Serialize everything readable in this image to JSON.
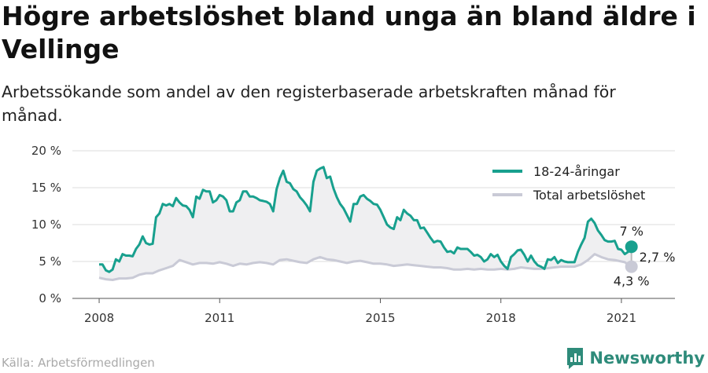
{
  "header": {
    "title": "Högre arbetslöshet bland unga än bland äldre i Vellinge",
    "subtitle": "Arbetssökande som andel av den registerbaserade arbetskraften månad för månad."
  },
  "footer": {
    "source": "Källa: Arbetsförmedlingen",
    "brand": "Newsworthy",
    "brand_icon": "newsworthy-logo-icon"
  },
  "colors": {
    "youth": "#18a08e",
    "total": "#c9cad6",
    "area": "#efeff1",
    "grid": "#dddddd",
    "brand": "#2e8b7a"
  },
  "chart_data": {
    "type": "line",
    "x_tick_labels": [
      "2008",
      "2011",
      "2015",
      "2018",
      "2021"
    ],
    "x_ticks": [
      "2008-01",
      "2011-01",
      "2015-01",
      "2018-01",
      "2021-01"
    ],
    "y_tick_labels": [
      "0 %",
      "5 %",
      "10 %",
      "15 %",
      "20 %"
    ],
    "ylim": [
      0,
      20
    ],
    "xlim": [
      "2007-05",
      "2022-05"
    ],
    "grid": true,
    "legend_position": "top-right",
    "end_labels": {
      "youth": "7 %",
      "total": "4,3 %",
      "gap": "2,7 %"
    },
    "series": [
      {
        "name": "18-24-åringar",
        "key": "youth",
        "points": [
          [
            "2008-01",
            4.6
          ],
          [
            "2008-02",
            4.6
          ],
          [
            "2008-03",
            3.8
          ],
          [
            "2008-04",
            3.6
          ],
          [
            "2008-05",
            3.9
          ],
          [
            "2008-06",
            5.3
          ],
          [
            "2008-07",
            5.0
          ],
          [
            "2008-08",
            6.0
          ],
          [
            "2008-09",
            5.8
          ],
          [
            "2008-10",
            5.8
          ],
          [
            "2008-11",
            5.7
          ],
          [
            "2008-12",
            6.7
          ],
          [
            "2009-01",
            7.3
          ],
          [
            "2009-02",
            8.4
          ],
          [
            "2009-03",
            7.5
          ],
          [
            "2009-04",
            7.3
          ],
          [
            "2009-05",
            7.4
          ],
          [
            "2009-06",
            11.0
          ],
          [
            "2009-07",
            11.5
          ],
          [
            "2009-08",
            12.8
          ],
          [
            "2009-09",
            12.6
          ],
          [
            "2009-10",
            12.8
          ],
          [
            "2009-11",
            12.5
          ],
          [
            "2009-12",
            13.6
          ],
          [
            "2010-01",
            13.0
          ],
          [
            "2010-02",
            12.6
          ],
          [
            "2010-03",
            12.5
          ],
          [
            "2010-04",
            12.0
          ],
          [
            "2010-05",
            11.0
          ],
          [
            "2010-06",
            13.8
          ],
          [
            "2010-07",
            13.5
          ],
          [
            "2010-08",
            14.7
          ],
          [
            "2010-09",
            14.5
          ],
          [
            "2010-10",
            14.5
          ],
          [
            "2010-11",
            13.0
          ],
          [
            "2010-12",
            13.3
          ],
          [
            "2011-01",
            14.0
          ],
          [
            "2011-02",
            13.8
          ],
          [
            "2011-03",
            13.3
          ],
          [
            "2011-04",
            11.8
          ],
          [
            "2011-05",
            11.8
          ],
          [
            "2011-06",
            13.0
          ],
          [
            "2011-07",
            13.3
          ],
          [
            "2011-08",
            14.5
          ],
          [
            "2011-09",
            14.5
          ],
          [
            "2011-10",
            13.8
          ],
          [
            "2011-11",
            13.8
          ],
          [
            "2011-12",
            13.6
          ],
          [
            "2012-01",
            13.3
          ],
          [
            "2012-02",
            13.2
          ],
          [
            "2012-03",
            13.1
          ],
          [
            "2012-04",
            12.8
          ],
          [
            "2012-05",
            11.8
          ],
          [
            "2012-06",
            14.8
          ],
          [
            "2012-07",
            16.3
          ],
          [
            "2012-08",
            17.3
          ],
          [
            "2012-09",
            15.8
          ],
          [
            "2012-10",
            15.6
          ],
          [
            "2012-11",
            14.8
          ],
          [
            "2012-12",
            14.5
          ],
          [
            "2013-01",
            13.7
          ],
          [
            "2013-02",
            13.2
          ],
          [
            "2013-03",
            12.6
          ],
          [
            "2013-04",
            11.8
          ],
          [
            "2013-05",
            15.8
          ],
          [
            "2013-06",
            17.3
          ],
          [
            "2013-07",
            17.6
          ],
          [
            "2013-08",
            17.8
          ],
          [
            "2013-09",
            16.3
          ],
          [
            "2013-10",
            16.5
          ],
          [
            "2013-11",
            14.9
          ],
          [
            "2013-12",
            13.7
          ],
          [
            "2014-01",
            12.8
          ],
          [
            "2014-02",
            12.2
          ],
          [
            "2014-03",
            11.3
          ],
          [
            "2014-04",
            10.4
          ],
          [
            "2014-05",
            12.8
          ],
          [
            "2014-06",
            12.8
          ],
          [
            "2014-07",
            13.8
          ],
          [
            "2014-08",
            14.0
          ],
          [
            "2014-09",
            13.5
          ],
          [
            "2014-10",
            13.2
          ],
          [
            "2014-11",
            12.8
          ],
          [
            "2014-12",
            12.7
          ],
          [
            "2015-01",
            12.0
          ],
          [
            "2015-02",
            11.0
          ],
          [
            "2015-03",
            10.0
          ],
          [
            "2015-04",
            9.6
          ],
          [
            "2015-05",
            9.4
          ],
          [
            "2015-06",
            11.0
          ],
          [
            "2015-07",
            10.6
          ],
          [
            "2015-08",
            12.0
          ],
          [
            "2015-09",
            11.5
          ],
          [
            "2015-10",
            11.2
          ],
          [
            "2015-11",
            10.6
          ],
          [
            "2015-12",
            10.6
          ],
          [
            "2016-01",
            9.5
          ],
          [
            "2016-02",
            9.6
          ],
          [
            "2016-03",
            8.9
          ],
          [
            "2016-04",
            8.2
          ],
          [
            "2016-05",
            7.6
          ],
          [
            "2016-06",
            7.8
          ],
          [
            "2016-07",
            7.7
          ],
          [
            "2016-08",
            6.9
          ],
          [
            "2016-09",
            6.3
          ],
          [
            "2016-10",
            6.4
          ],
          [
            "2016-11",
            6.1
          ],
          [
            "2016-12",
            6.9
          ],
          [
            "2017-01",
            6.7
          ],
          [
            "2017-02",
            6.7
          ],
          [
            "2017-03",
            6.7
          ],
          [
            "2017-04",
            6.3
          ],
          [
            "2017-05",
            5.8
          ],
          [
            "2017-06",
            5.9
          ],
          [
            "2017-07",
            5.6
          ],
          [
            "2017-08",
            5.0
          ],
          [
            "2017-09",
            5.3
          ],
          [
            "2017-10",
            6.0
          ],
          [
            "2017-11",
            5.6
          ],
          [
            "2017-12",
            5.9
          ],
          [
            "2018-01",
            5.0
          ],
          [
            "2018-02",
            4.4
          ],
          [
            "2018-03",
            4.0
          ],
          [
            "2018-04",
            5.6
          ],
          [
            "2018-05",
            6.0
          ],
          [
            "2018-06",
            6.5
          ],
          [
            "2018-07",
            6.6
          ],
          [
            "2018-08",
            5.9
          ],
          [
            "2018-09",
            5.0
          ],
          [
            "2018-10",
            5.8
          ],
          [
            "2018-11",
            5.0
          ],
          [
            "2018-12",
            4.5
          ],
          [
            "2019-01",
            4.3
          ],
          [
            "2019-02",
            4.0
          ],
          [
            "2019-03",
            5.3
          ],
          [
            "2019-04",
            5.2
          ],
          [
            "2019-05",
            5.6
          ],
          [
            "2019-06",
            4.8
          ],
          [
            "2019-07",
            5.2
          ],
          [
            "2019-08",
            5.0
          ],
          [
            "2019-09",
            4.9
          ],
          [
            "2019-10",
            4.9
          ],
          [
            "2019-11",
            4.9
          ],
          [
            "2019-12",
            6.3
          ],
          [
            "2020-01",
            7.3
          ],
          [
            "2020-02",
            8.2
          ],
          [
            "2020-03",
            10.4
          ],
          [
            "2020-04",
            10.8
          ],
          [
            "2020-05",
            10.2
          ],
          [
            "2020-06",
            9.2
          ],
          [
            "2020-07",
            8.6
          ],
          [
            "2020-08",
            7.9
          ],
          [
            "2020-09",
            7.7
          ],
          [
            "2020-10",
            7.7
          ],
          [
            "2020-11",
            7.8
          ],
          [
            "2020-12",
            6.7
          ],
          [
            "2021-01",
            6.6
          ],
          [
            "2021-02",
            6.0
          ],
          [
            "2021-03",
            6.3
          ],
          [
            "2021-04",
            7.0
          ]
        ]
      },
      {
        "name": "Total arbetslöshet",
        "key": "total",
        "points": [
          [
            "2008-01",
            2.8
          ],
          [
            "2008-03",
            2.6
          ],
          [
            "2008-05",
            2.5
          ],
          [
            "2008-07",
            2.7
          ],
          [
            "2008-09",
            2.7
          ],
          [
            "2008-11",
            2.8
          ],
          [
            "2009-01",
            3.2
          ],
          [
            "2009-03",
            3.4
          ],
          [
            "2009-05",
            3.4
          ],
          [
            "2009-07",
            3.8
          ],
          [
            "2009-09",
            4.1
          ],
          [
            "2009-11",
            4.4
          ],
          [
            "2010-01",
            5.2
          ],
          [
            "2010-03",
            4.9
          ],
          [
            "2010-05",
            4.6
          ],
          [
            "2010-07",
            4.8
          ],
          [
            "2010-09",
            4.8
          ],
          [
            "2010-11",
            4.7
          ],
          [
            "2011-01",
            4.9
          ],
          [
            "2011-03",
            4.7
          ],
          [
            "2011-05",
            4.4
          ],
          [
            "2011-07",
            4.7
          ],
          [
            "2011-09",
            4.6
          ],
          [
            "2011-11",
            4.8
          ],
          [
            "2012-01",
            4.9
          ],
          [
            "2012-03",
            4.8
          ],
          [
            "2012-05",
            4.6
          ],
          [
            "2012-07",
            5.2
          ],
          [
            "2012-09",
            5.3
          ],
          [
            "2012-11",
            5.1
          ],
          [
            "2013-01",
            4.9
          ],
          [
            "2013-03",
            4.8
          ],
          [
            "2013-05",
            5.3
          ],
          [
            "2013-07",
            5.6
          ],
          [
            "2013-09",
            5.3
          ],
          [
            "2013-11",
            5.2
          ],
          [
            "2014-01",
            5.0
          ],
          [
            "2014-03",
            4.8
          ],
          [
            "2014-05",
            5.0
          ],
          [
            "2014-07",
            5.1
          ],
          [
            "2014-09",
            4.9
          ],
          [
            "2014-11",
            4.7
          ],
          [
            "2015-01",
            4.7
          ],
          [
            "2015-03",
            4.6
          ],
          [
            "2015-05",
            4.4
          ],
          [
            "2015-07",
            4.5
          ],
          [
            "2015-09",
            4.6
          ],
          [
            "2015-11",
            4.5
          ],
          [
            "2016-01",
            4.4
          ],
          [
            "2016-03",
            4.3
          ],
          [
            "2016-05",
            4.2
          ],
          [
            "2016-07",
            4.2
          ],
          [
            "2016-09",
            4.1
          ],
          [
            "2016-11",
            3.9
          ],
          [
            "2017-01",
            3.9
          ],
          [
            "2017-03",
            4.0
          ],
          [
            "2017-05",
            3.9
          ],
          [
            "2017-07",
            4.0
          ],
          [
            "2017-09",
            3.9
          ],
          [
            "2017-11",
            3.9
          ],
          [
            "2018-01",
            4.0
          ],
          [
            "2018-03",
            3.9
          ],
          [
            "2018-05",
            4.0
          ],
          [
            "2018-07",
            4.2
          ],
          [
            "2018-09",
            4.1
          ],
          [
            "2018-11",
            4.0
          ],
          [
            "2019-01",
            4.0
          ],
          [
            "2019-03",
            4.1
          ],
          [
            "2019-05",
            4.2
          ],
          [
            "2019-07",
            4.3
          ],
          [
            "2019-09",
            4.3
          ],
          [
            "2019-11",
            4.3
          ],
          [
            "2020-01",
            4.6
          ],
          [
            "2020-03",
            5.2
          ],
          [
            "2020-04",
            5.6
          ],
          [
            "2020-05",
            6.0
          ],
          [
            "2020-07",
            5.6
          ],
          [
            "2020-09",
            5.3
          ],
          [
            "2020-11",
            5.2
          ],
          [
            "2021-01",
            5.0
          ],
          [
            "2021-02",
            4.9
          ],
          [
            "2021-03",
            4.6
          ],
          [
            "2021-04",
            4.3
          ]
        ]
      }
    ]
  }
}
